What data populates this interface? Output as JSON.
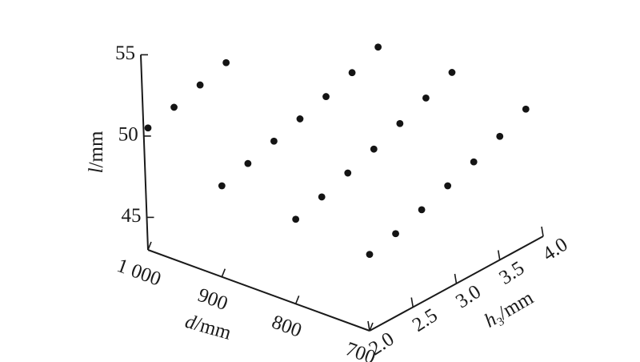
{
  "chart_data": {
    "type": "scatter",
    "projection": "3d",
    "title": "",
    "axes": {
      "l": {
        "name": "l",
        "unit": "/mm",
        "range": [
          43,
          55
        ],
        "ticks": [
          {
            "value": 45,
            "label": "45"
          },
          {
            "value": 50,
            "label": "50"
          },
          {
            "value": 55,
            "label": "55"
          }
        ]
      },
      "d": {
        "name": "d",
        "unit": "/mm",
        "range": [
          700,
          1000
        ],
        "ticks": [
          {
            "value": 1000,
            "label": "1 000"
          },
          {
            "value": 900,
            "label": "900"
          },
          {
            "value": 800,
            "label": "800"
          },
          {
            "value": 700,
            "label": "700"
          }
        ]
      },
      "h3": {
        "name": "h",
        "subscript": "3",
        "unit": "/mm",
        "range": [
          2.0,
          4.0
        ],
        "ticks": [
          {
            "value": 2.0,
            "label": "2.0"
          },
          {
            "value": 2.5,
            "label": "2.5"
          },
          {
            "value": 3.0,
            "label": "3.0"
          },
          {
            "value": 3.5,
            "label": "3.5"
          },
          {
            "value": 4.0,
            "label": "4.0"
          }
        ]
      }
    },
    "grid": false,
    "legend": "none",
    "marker_color": "#141414",
    "points": [
      {
        "d": 1000,
        "h3": 2.0,
        "l": 50.5
      },
      {
        "d": 1000,
        "h3": 2.3,
        "l": 50.9
      },
      {
        "d": 1000,
        "h3": 2.6,
        "l": 51.4
      },
      {
        "d": 1000,
        "h3": 2.9,
        "l": 51.9
      },
      {
        "d": 900,
        "h3": 2.0,
        "l": 48.6
      },
      {
        "d": 900,
        "h3": 2.3,
        "l": 49.1
      },
      {
        "d": 900,
        "h3": 2.6,
        "l": 49.6
      },
      {
        "d": 900,
        "h3": 2.9,
        "l": 50.1
      },
      {
        "d": 900,
        "h3": 3.2,
        "l": 50.6
      },
      {
        "d": 900,
        "h3": 3.5,
        "l": 51.2
      },
      {
        "d": 900,
        "h3": 3.8,
        "l": 51.9
      },
      {
        "d": 800,
        "h3": 2.0,
        "l": 48.2
      },
      {
        "d": 800,
        "h3": 2.3,
        "l": 48.7
      },
      {
        "d": 800,
        "h3": 2.6,
        "l": 49.3
      },
      {
        "d": 800,
        "h3": 2.9,
        "l": 49.9
      },
      {
        "d": 800,
        "h3": 3.2,
        "l": 50.6
      },
      {
        "d": 800,
        "h3": 3.5,
        "l": 51.3
      },
      {
        "d": 800,
        "h3": 3.8,
        "l": 52.0
      },
      {
        "d": 700,
        "h3": 2.0,
        "l": 47.7
      },
      {
        "d": 700,
        "h3": 2.3,
        "l": 48.1
      },
      {
        "d": 700,
        "h3": 2.6,
        "l": 48.7
      },
      {
        "d": 700,
        "h3": 2.9,
        "l": 49.3
      },
      {
        "d": 700,
        "h3": 3.2,
        "l": 49.9
      },
      {
        "d": 700,
        "h3": 3.5,
        "l": 50.6
      },
      {
        "d": 700,
        "h3": 3.8,
        "l": 51.4
      }
    ]
  }
}
